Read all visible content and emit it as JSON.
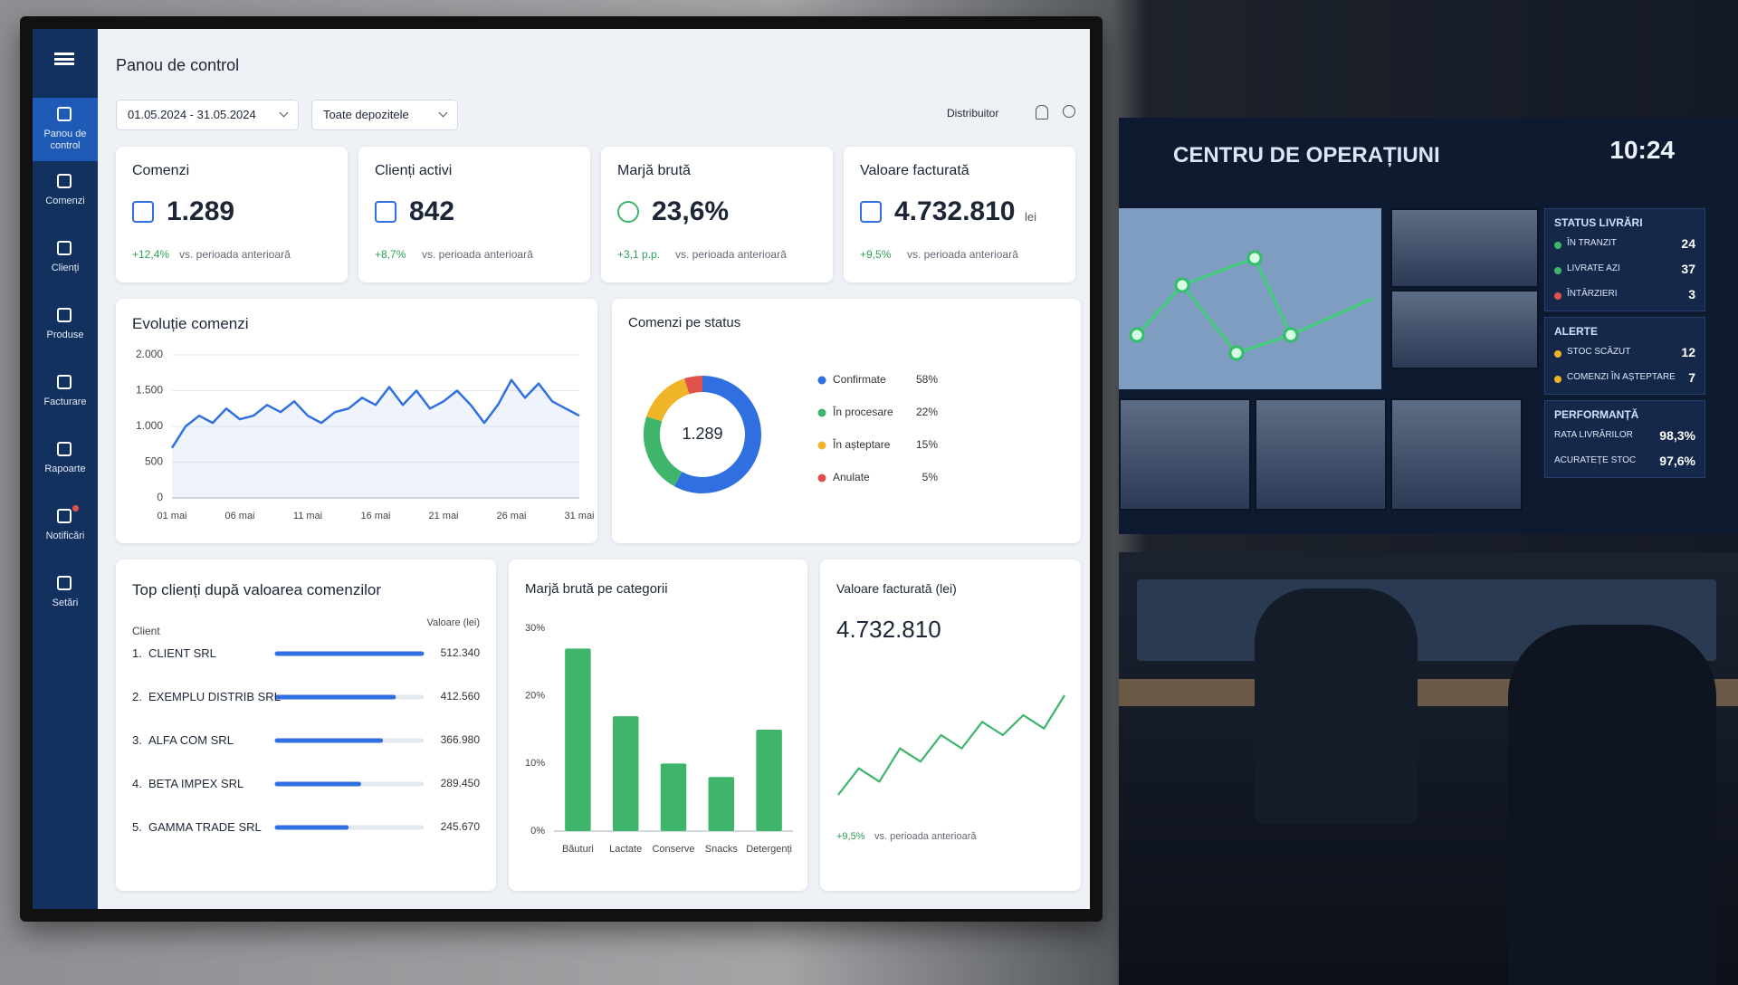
{
  "sidebar": {
    "items": [
      "Panou de control",
      "Comenzi",
      "Clienți",
      "Produse",
      "Facturare",
      "Rapoarte",
      "Notificări",
      "Setări"
    ]
  },
  "header": {
    "title": "Panou de control",
    "date_range": "01.05.2024 - 31.05.2024",
    "warehouse": "Toate depozitele",
    "role": "Distribuitor"
  },
  "kpis": [
    {
      "title": "Comenzi",
      "value": "1.289",
      "change": "+12,4%",
      "note": "vs. perioada anterioară"
    },
    {
      "title": "Clienți activi",
      "value": "842",
      "change": "+8,7%",
      "note": "vs. perioada anterioară"
    },
    {
      "title": "Marjă brută",
      "value": "23,6%",
      "change": "+3,1 p.p.",
      "note": "vs. perioada anterioară"
    },
    {
      "title": "Valoare facturată",
      "value": "4.732.810",
      "unit": "lei",
      "change": "+9,5%",
      "note": "vs. perioada anterioară"
    }
  ],
  "evolution": {
    "type": "line",
    "title": "Evoluție comenzi",
    "categories": [
      "01 mai",
      null,
      null,
      null,
      null,
      "06 mai",
      null,
      null,
      null,
      null,
      "11 mai",
      null,
      null,
      null,
      null,
      "16 mai",
      null,
      null,
      null,
      null,
      "21 mai",
      null,
      null,
      null,
      null,
      "26 mai",
      null,
      null,
      null,
      null,
      "31 mai"
    ],
    "values": [
      700,
      1000,
      1150,
      1050,
      1250,
      1100,
      1150,
      1300,
      1200,
      1350,
      1150,
      1050,
      1200,
      1250,
      1400,
      1300,
      1550,
      1300,
      1500,
      1250,
      1350,
      1500,
      1300,
      1050,
      1300,
      1650,
      1400,
      1600,
      1350,
      1250,
      1150
    ],
    "color": "#2f6fdf",
    "ylim": [
      0,
      2000
    ],
    "yticks": [
      0,
      500,
      {
        "value": 1000,
        "label": "1.000"
      },
      {
        "value": 1500,
        "label": "1.500"
      },
      {
        "value": 2000,
        "label": "2.000"
      }
    ],
    "grid": true
  },
  "status": {
    "type": "donut",
    "title": "Comenzi pe status",
    "center_label": "1.289",
    "categories": [
      "Confirmate",
      "În procesare",
      "În așteptare",
      "Anulate"
    ],
    "values": [
      58,
      22,
      15,
      5
    ],
    "value_labels": [
      "58%",
      "22%",
      "15%",
      "5%"
    ],
    "colors": [
      "#2f6fdf",
      "#3fb56b",
      "#f0b429",
      "#e0514a"
    ]
  },
  "top_clients": {
    "type": "progress",
    "title": "Top clienți după valoarea comenzilor",
    "column_client": "Client",
    "column_value": "Valoare (lei)",
    "ranks": [
      "1.",
      "2.",
      "3.",
      "4.",
      "5."
    ],
    "categories": [
      "CLIENT SRL",
      "EXEMPLU DISTRIB SRL",
      "ALFA COM SRL",
      "BETA IMPEX SRL",
      "GAMMA TRADE SRL"
    ],
    "values": [
      512340,
      412560,
      366980,
      289450,
      245670
    ],
    "value_labels": [
      "512.340",
      "412.560",
      "366.980",
      "289.450",
      "245.670"
    ],
    "color": "#2f6fdf"
  },
  "margin": {
    "type": "bar",
    "title": "Marjă brută pe categorii",
    "categories": [
      "Băuturi",
      "Lactate",
      "Conserve",
      "Snacks",
      "Detergenți"
    ],
    "values": [
      27,
      17,
      10,
      8,
      15
    ],
    "color": "#3fb56b",
    "ylim": [
      0,
      30
    ],
    "yticks": [
      {
        "value": 0,
        "label": "0%"
      },
      {
        "value": 10,
        "label": "10%"
      },
      {
        "value": 20,
        "label": "20%"
      },
      {
        "value": 30,
        "label": "30%"
      }
    ]
  },
  "invoice": {
    "type": "sparkline",
    "title": "Valoare facturată (lei)",
    "value": "4.732.810",
    "change": "+9,5%",
    "note": "vs. perioada anterioară",
    "values": [
      10,
      14,
      12,
      17,
      15,
      19,
      17,
      21,
      19,
      22,
      20,
      25
    ],
    "color": "#3fb56b"
  },
  "ops_center": {
    "title": "CENTRU DE OPERAȚIUNI",
    "time": "10:24",
    "panels": [
      {
        "title": "STATUS LIVRĂRI",
        "rows": [
          {
            "label": "ÎN TRANZIT",
            "value": "24"
          },
          {
            "label": "LIVRATE AZI",
            "value": "37"
          },
          {
            "label": "ÎNTÂRZIERI",
            "value": "3"
          }
        ]
      },
      {
        "title": "ALERTE",
        "rows": [
          {
            "label": "STOC SCĂZUT",
            "value": "12"
          },
          {
            "label": "COMENZI ÎN AȘTEPTARE",
            "value": "7"
          }
        ]
      },
      {
        "title": "PERFORMANȚĂ",
        "rows": [
          {
            "label": "RATA LIVRĂRILOR",
            "value": "98,3%"
          },
          {
            "label": "ACURATEȚE STOC",
            "value": "97,6%"
          }
        ]
      }
    ]
  }
}
